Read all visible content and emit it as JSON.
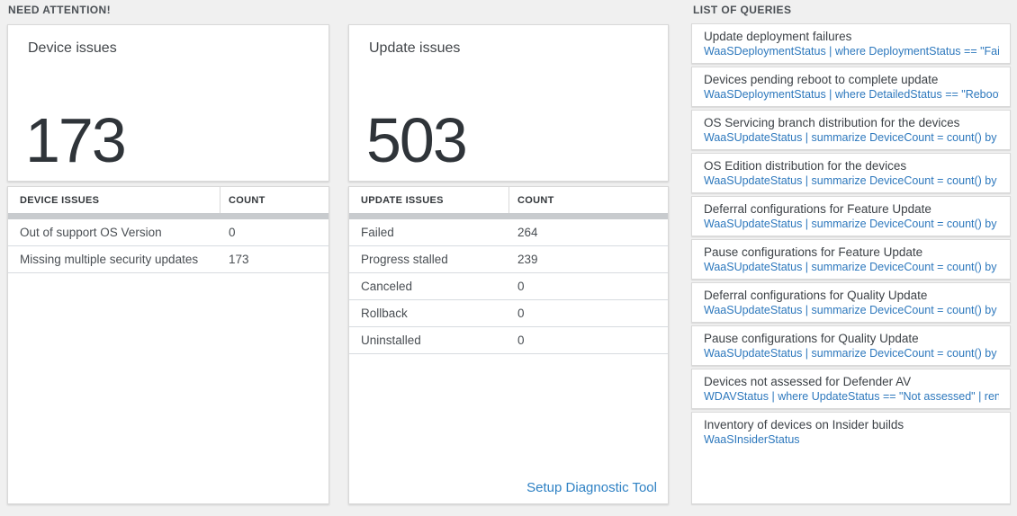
{
  "sections": {
    "need_attention_header": "NEED ATTENTION!",
    "queries_header": "LIST OF QUERIES"
  },
  "device": {
    "title": "Device issues",
    "count": "173",
    "table": {
      "col_issue": "DEVICE ISSUES",
      "col_count": "COUNT",
      "rows": [
        {
          "issue": "Out of support OS Version",
          "count": "0"
        },
        {
          "issue": "Missing multiple security updates",
          "count": "173"
        }
      ]
    }
  },
  "update": {
    "title": "Update issues",
    "count": "503",
    "table": {
      "col_issue": "UPDATE ISSUES",
      "col_count": "COUNT",
      "rows": [
        {
          "issue": "Failed",
          "count": "264"
        },
        {
          "issue": "Progress stalled",
          "count": "239"
        },
        {
          "issue": "Canceled",
          "count": "0"
        },
        {
          "issue": "Rollback",
          "count": "0"
        },
        {
          "issue": "Uninstalled",
          "count": "0"
        }
      ]
    },
    "footer_link": "Setup Diagnostic Tool"
  },
  "queries": {
    "items": [
      {
        "title": "Update deployment failures",
        "query": "WaaSDeploymentStatus | where DeploymentStatus == \"Failed\" |..."
      },
      {
        "title": "Devices pending reboot to complete update",
        "query": "WaaSDeploymentStatus | where DetailedStatus == \"Reboot pend..."
      },
      {
        "title": "OS Servicing branch distribution for the devices",
        "query": "WaaSUpdateStatus | summarize DeviceCount = count() by OSSer..."
      },
      {
        "title": "OS Edition distribution for the devices",
        "query": "WaaSUpdateStatus | summarize DeviceCount = count() by OSEdit..."
      },
      {
        "title": "Deferral configurations for Feature Update",
        "query": "WaaSUpdateStatus | summarize DeviceCount = count() by Featur..."
      },
      {
        "title": "Pause configurations for Feature Update",
        "query": "WaaSUpdateStatus | summarize DeviceCount = count() by Featur..."
      },
      {
        "title": "Deferral configurations for Quality Update",
        "query": "WaaSUpdateStatus | summarize DeviceCount = count() by Qualit..."
      },
      {
        "title": "Pause configurations for Quality Update",
        "query": "WaaSUpdateStatus | summarize DeviceCount = count() by Qualit..."
      },
      {
        "title": "Devices not assessed for Defender AV",
        "query": "WDAVStatus | where UpdateStatus == \"Not assessed\" | render ta..."
      },
      {
        "title": "Inventory of devices on Insider builds",
        "query": "WaaSInsiderStatus"
      }
    ]
  },
  "colors": {
    "link_blue": "#2e81c4",
    "query_blue": "#2d78bd",
    "scrollbar_gray": "#c8cbce",
    "page_background": "#f0f0f0"
  }
}
